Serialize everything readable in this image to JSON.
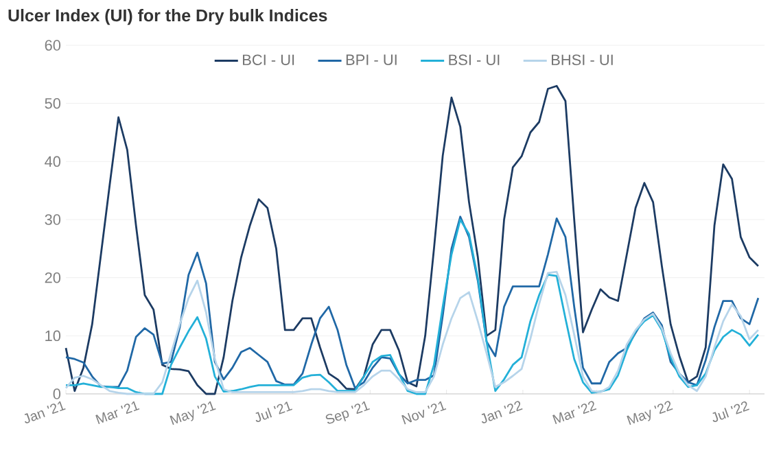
{
  "chart_data": {
    "type": "line",
    "title": "Ulcer Index (UI) for the Dry bulk Indices",
    "x": [
      "2021-01-01",
      "2021-01-08",
      "2021-01-15",
      "2021-01-22",
      "2021-01-29",
      "2021-02-05",
      "2021-02-12",
      "2021-02-19",
      "2021-02-26",
      "2021-03-05",
      "2021-03-12",
      "2021-03-19",
      "2021-03-26",
      "2021-04-02",
      "2021-04-09",
      "2021-04-16",
      "2021-04-23",
      "2021-04-30",
      "2021-05-07",
      "2021-05-14",
      "2021-05-21",
      "2021-05-28",
      "2021-06-04",
      "2021-06-11",
      "2021-06-18",
      "2021-06-25",
      "2021-07-02",
      "2021-07-09",
      "2021-07-16",
      "2021-07-23",
      "2021-07-30",
      "2021-08-06",
      "2021-08-13",
      "2021-08-20",
      "2021-08-27",
      "2021-09-03",
      "2021-09-10",
      "2021-09-17",
      "2021-09-24",
      "2021-10-01",
      "2021-10-08",
      "2021-10-15",
      "2021-10-22",
      "2021-10-29",
      "2021-11-05",
      "2021-11-12",
      "2021-11-19",
      "2021-11-26",
      "2021-12-03",
      "2021-12-10",
      "2021-12-17",
      "2021-12-24",
      "2021-12-31",
      "2022-01-07",
      "2022-01-14",
      "2022-01-21",
      "2022-01-28",
      "2022-02-04",
      "2022-02-11",
      "2022-02-18",
      "2022-02-25",
      "2022-03-04",
      "2022-03-11",
      "2022-03-18",
      "2022-03-25",
      "2022-04-01",
      "2022-04-08",
      "2022-04-15",
      "2022-04-22",
      "2022-04-29",
      "2022-05-06",
      "2022-05-13",
      "2022-05-20",
      "2022-05-27",
      "2022-06-03",
      "2022-06-10",
      "2022-06-17",
      "2022-06-24",
      "2022-07-01",
      "2022-07-08"
    ],
    "series": [
      {
        "name": "BCI - UI",
        "color": "#1c3b63",
        "values": [
          7.9,
          0.5,
          4.5,
          12,
          24,
          36,
          47.6,
          42,
          29,
          17,
          14.5,
          5,
          4.3,
          4.2,
          3.9,
          1.5,
          0,
          0,
          6.3,
          16,
          23.5,
          29,
          33.5,
          32,
          25,
          11,
          11,
          13,
          13,
          8,
          3.5,
          2.5,
          0.9,
          0.8,
          3,
          8.5,
          11,
          11,
          7.5,
          2,
          1.3,
          10,
          25,
          41,
          51,
          46,
          33,
          23.6,
          10,
          11,
          30,
          39,
          40.9,
          45,
          46.8,
          52.5,
          53,
          50.4,
          30,
          10.6,
          14.5,
          18,
          16.6,
          16,
          24,
          32,
          36.3,
          33,
          22,
          12,
          6.5,
          2,
          3,
          8,
          29,
          39.5,
          37,
          27,
          23.5,
          22
        ]
      },
      {
        "name": "BPI - UI",
        "color": "#2068a6",
        "values": [
          6.3,
          6,
          5.4,
          3,
          1.3,
          1.2,
          1.2,
          4,
          9.8,
          11.3,
          10.2,
          5.2,
          5.5,
          11.5,
          20.5,
          24.3,
          19,
          5.5,
          2.5,
          4.5,
          7.2,
          7.9,
          6.7,
          5.5,
          2.2,
          1.6,
          1.6,
          3.5,
          8.5,
          13,
          15,
          11,
          5,
          1,
          2,
          4.5,
          6.3,
          6.1,
          3.4,
          1.8,
          2.4,
          2.4,
          3.2,
          13.5,
          25,
          30.5,
          27,
          19.5,
          9,
          6.5,
          15,
          18.5,
          18.5,
          18.5,
          18.5,
          24,
          30.2,
          27,
          15,
          4.5,
          1.8,
          1.8,
          5.5,
          7,
          7.9,
          10.5,
          13,
          14,
          11.8,
          5.5,
          3.5,
          2,
          1.5,
          5.8,
          11.5,
          16,
          16,
          13,
          12,
          16.5
        ]
      },
      {
        "name": "BSI - UI",
        "color": "#23b0d8",
        "values": [
          1.5,
          1.5,
          1.8,
          1.5,
          1.2,
          1.2,
          1,
          1,
          0.3,
          0,
          0,
          0,
          5,
          8,
          10.8,
          13.2,
          9.5,
          3,
          0.4,
          0.5,
          0.8,
          1.2,
          1.5,
          1.5,
          1.5,
          1.5,
          1.5,
          2.8,
          3.2,
          3.3,
          2,
          0.5,
          0.5,
          0.5,
          3,
          5.5,
          6.5,
          6.7,
          3.5,
          0.5,
          0,
          0,
          5,
          15,
          24,
          30,
          27.5,
          20,
          9,
          0.5,
          2.5,
          5,
          6.3,
          12.5,
          17,
          20.5,
          20.3,
          13,
          6,
          2,
          0.2,
          0.4,
          0.8,
          3.2,
          7.5,
          10.8,
          12.5,
          13.5,
          11,
          6.3,
          3,
          1.2,
          1.5,
          3.5,
          7.5,
          9.8,
          11,
          10.2,
          8.3,
          10.2
        ]
      },
      {
        "name": "BHSI - UI",
        "color": "#b6d4ea",
        "values": [
          1,
          2.8,
          3.1,
          2.5,
          1.5,
          0.5,
          0.2,
          0,
          0,
          0,
          0,
          2,
          7,
          12,
          16.5,
          19.5,
          14,
          6,
          0.8,
          0.3,
          0.3,
          0.3,
          0.3,
          0.3,
          0.3,
          0.3,
          0.3,
          0.5,
          0.8,
          0.8,
          0.5,
          0.3,
          0.3,
          0.3,
          1.5,
          3,
          4,
          4,
          2.5,
          0.8,
          0.3,
          0.3,
          3,
          8.5,
          13,
          16.5,
          17.5,
          12.5,
          7,
          1.2,
          2,
          3.1,
          4.3,
          9.5,
          15.5,
          20.8,
          21,
          17,
          10.2,
          3,
          0.5,
          0.3,
          1.2,
          4,
          8.5,
          11,
          12.8,
          13.8,
          11.3,
          7,
          3.5,
          1.5,
          0.5,
          3,
          8,
          12.5,
          15.4,
          13.4,
          9.4,
          11
        ]
      }
    ],
    "xlim": [
      "2021-01-01",
      "2022-07-13"
    ],
    "xticks": [
      {
        "value": "2021-01-01",
        "label": "Jan '21"
      },
      {
        "value": "2021-03-01",
        "label": "Mar '21"
      },
      {
        "value": "2021-05-01",
        "label": "May '21"
      },
      {
        "value": "2021-07-01",
        "label": "Jul '21"
      },
      {
        "value": "2021-09-01",
        "label": "Sep '21"
      },
      {
        "value": "2021-11-01",
        "label": "Nov '21"
      },
      {
        "value": "2022-01-01",
        "label": "Jan '22"
      },
      {
        "value": "2022-03-01",
        "label": "Mar '22"
      },
      {
        "value": "2022-05-01",
        "label": "May '22"
      },
      {
        "value": "2022-07-01",
        "label": "Jul '22"
      }
    ],
    "ylim": [
      0,
      60
    ],
    "yticks": [
      0,
      10,
      20,
      30,
      40,
      50,
      60
    ],
    "grid": "y",
    "legend": "top",
    "line_style": "solid"
  }
}
